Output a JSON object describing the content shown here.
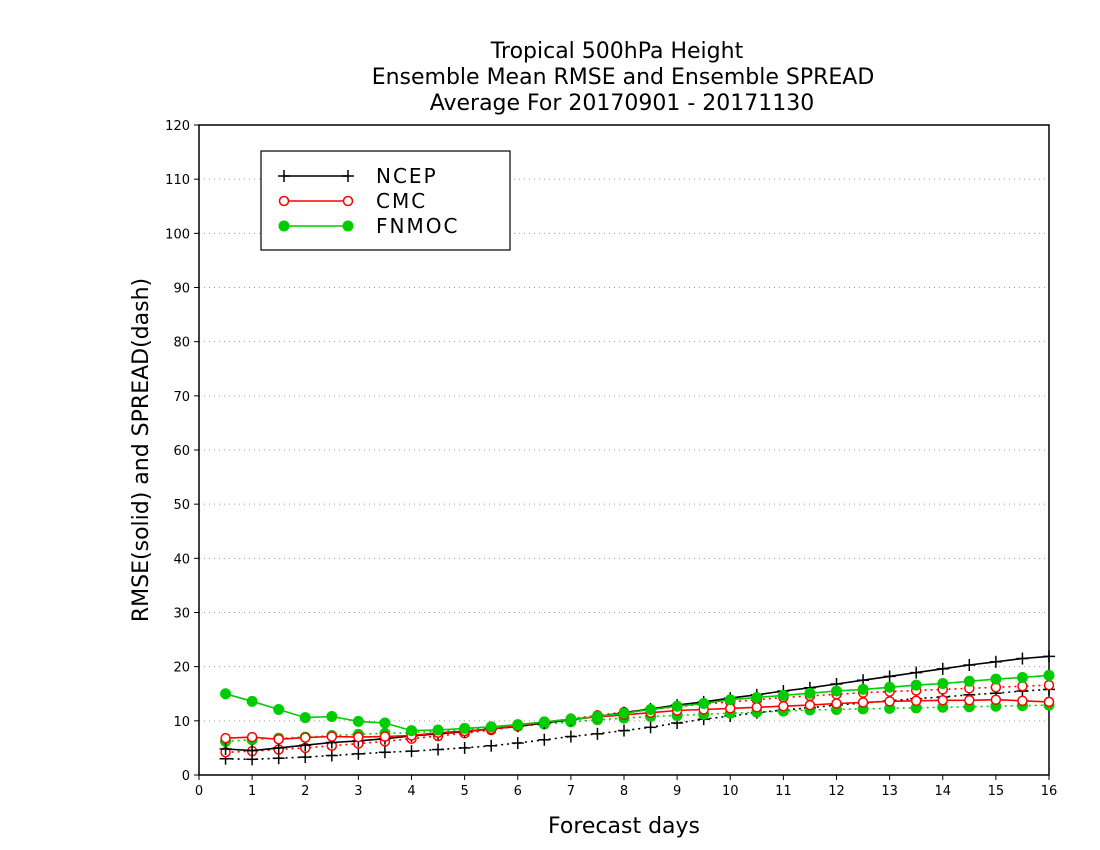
{
  "chart_data": {
    "type": "line",
    "title": [
      "Tropical 500hPa Height",
      "Ensemble Mean RMSE and Ensemble SPREAD",
      "Average For 20170901 - 20171130"
    ],
    "xlabel": "Forecast days",
    "ylabel": "RMSE(solid) and SPREAD(dash)",
    "xlim": [
      0,
      16
    ],
    "ylim": [
      0,
      120
    ],
    "xticks": [
      "0",
      "1",
      "2",
      "3",
      "4",
      "5",
      "6",
      "7",
      "8",
      "9",
      "10",
      "11",
      "12",
      "13",
      "14",
      "15",
      "16"
    ],
    "yticks": [
      "0",
      "10",
      "20",
      "30",
      "40",
      "50",
      "60",
      "70",
      "80",
      "90",
      "100",
      "110",
      "120"
    ],
    "grid": "horizontal dotted",
    "legend_position": "top-left",
    "x": [
      0.5,
      1,
      1.5,
      2,
      2.5,
      3,
      3.5,
      4,
      4.5,
      5,
      5.5,
      6,
      6.5,
      7,
      7.5,
      8,
      8.5,
      9,
      9.5,
      10,
      10.5,
      11,
      11.5,
      12,
      12.5,
      13,
      13.5,
      14,
      14.5,
      15,
      15.5,
      16
    ],
    "series": [
      {
        "name": "NCEP",
        "kind": "rmse",
        "color": "#000000",
        "marker": "plus",
        "values": [
          4.8,
          4.5,
          5.0,
          5.5,
          6.0,
          6.3,
          6.7,
          7.2,
          7.6,
          8.0,
          8.5,
          9.0,
          9.6,
          10.2,
          10.8,
          11.5,
          12.2,
          12.9,
          13.5,
          14.2,
          14.8,
          15.5,
          16.1,
          16.8,
          17.5,
          18.2,
          18.9,
          19.6,
          20.3,
          20.9,
          21.5,
          21.9
        ]
      },
      {
        "name": "CMC",
        "kind": "rmse",
        "color": "#ff0000",
        "marker": "open-circle",
        "values": [
          6.8,
          7.0,
          6.6,
          6.9,
          7.1,
          7.0,
          7.1,
          7.3,
          7.8,
          8.1,
          8.5,
          9.1,
          9.8,
          10.3,
          10.7,
          11.1,
          11.5,
          11.9,
          12.1,
          12.3,
          12.5,
          12.7,
          12.9,
          13.2,
          13.4,
          13.6,
          13.7,
          13.8,
          13.8,
          13.9,
          13.7,
          13.5
        ]
      },
      {
        "name": "FNMOC",
        "kind": "rmse",
        "color": "#00cc00",
        "marker": "filled-circle",
        "values": [
          15.0,
          13.6,
          12.1,
          10.6,
          10.8,
          9.9,
          9.6,
          8.2,
          8.3,
          8.6,
          8.9,
          9.3,
          9.8,
          10.3,
          10.8,
          11.4,
          12.1,
          12.7,
          13.2,
          13.9,
          14.3,
          14.7,
          15.1,
          15.5,
          15.8,
          16.2,
          16.6,
          16.9,
          17.3,
          17.7,
          18.0,
          18.4
        ]
      },
      {
        "name": "NCEP",
        "kind": "spread",
        "color": "#000000",
        "marker": "plus",
        "values": [
          3.0,
          2.9,
          3.1,
          3.3,
          3.6,
          3.9,
          4.2,
          4.4,
          4.7,
          5.0,
          5.4,
          5.9,
          6.5,
          7.1,
          7.6,
          8.2,
          8.8,
          9.6,
          10.3,
          10.9,
          11.5,
          12.0,
          12.4,
          12.9,
          13.3,
          13.7,
          14.1,
          14.4,
          14.8,
          15.1,
          15.5,
          15.8
        ]
      },
      {
        "name": "CMC",
        "kind": "spread",
        "color": "#ff0000",
        "marker": "open-circle",
        "values": [
          4.2,
          4.4,
          4.7,
          5.0,
          5.4,
          5.8,
          6.2,
          6.7,
          7.2,
          7.7,
          8.3,
          9.0,
          9.7,
          10.4,
          11.0,
          11.6,
          12.1,
          12.6,
          13.1,
          13.5,
          13.9,
          14.3,
          14.6,
          14.9,
          15.2,
          15.4,
          15.6,
          15.8,
          16.0,
          16.2,
          16.4,
          16.6
        ]
      },
      {
        "name": "FNMOC",
        "kind": "spread",
        "color": "#00cc00",
        "marker": "filled-circle",
        "values": [
          6.2,
          6.5,
          6.8,
          7.0,
          7.3,
          7.5,
          7.7,
          7.8,
          8.1,
          8.4,
          8.7,
          9.0,
          9.4,
          9.8,
          10.2,
          10.5,
          10.8,
          11.0,
          11.2,
          11.4,
          11.6,
          11.8,
          12.0,
          12.1,
          12.2,
          12.3,
          12.4,
          12.5,
          12.6,
          12.7,
          12.8,
          12.9
        ]
      }
    ]
  }
}
